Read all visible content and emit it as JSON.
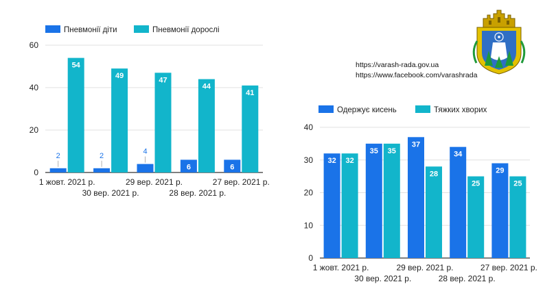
{
  "colors": {
    "children": "#1a73e8",
    "adults": "#12b5cb",
    "oxygen": "#1a73e8",
    "severe": "#12b5cb",
    "grid": "#e0e0e0",
    "axis": "#333333"
  },
  "links": {
    "website": "https://varash-rada.gov.ua",
    "facebook": "https://www.facebook.com/varashrada"
  },
  "crest": {
    "icon": "coat-of-arms-icon"
  },
  "chart_data": [
    {
      "type": "bar",
      "title": "",
      "categories": [
        "1 жовт. 2021 р.",
        "30 вер. 2021 р.",
        "29 вер. 2021 р.",
        "28 вер. 2021 р.",
        "27 вер. 2021 р."
      ],
      "series": [
        {
          "name": "Пневмонії діти",
          "values": [
            2,
            2,
            4,
            6,
            6
          ]
        },
        {
          "name": "Пневмонії дорослі",
          "values": [
            54,
            49,
            47,
            44,
            41
          ]
        }
      ],
      "ylim": [
        0,
        60
      ],
      "yticks": [
        "0",
        "20",
        "40",
        "60"
      ],
      "legend": "top-left",
      "grid": true
    },
    {
      "type": "bar",
      "title": "",
      "categories": [
        "1 жовт. 2021 р.",
        "30 вер. 2021 р.",
        "29 вер. 2021 р.",
        "28 вер. 2021 р.",
        "27 вер. 2021 р."
      ],
      "series": [
        {
          "name": "Одержує кисень",
          "values": [
            32,
            35,
            37,
            34,
            29
          ]
        },
        {
          "name": "Тяжких хворих",
          "values": [
            32,
            35,
            28,
            25,
            25
          ]
        }
      ],
      "ylim": [
        0,
        40
      ],
      "yticks": [
        "0",
        "10",
        "20",
        "30",
        "40"
      ],
      "legend": "top-left",
      "grid": true
    }
  ]
}
